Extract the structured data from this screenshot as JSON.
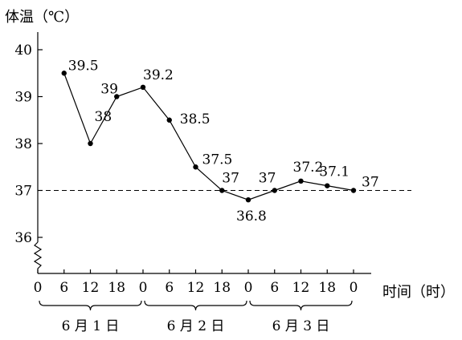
{
  "chart_data": {
    "type": "line",
    "ylabel": "体温（℃）",
    "xlabel": "时间（时）",
    "x_ticks": [
      "0",
      "6",
      "12",
      "18",
      "0",
      "6",
      "12",
      "18",
      "0",
      "6",
      "12",
      "18",
      "0"
    ],
    "y_ticks": [
      "36",
      "37",
      "38",
      "39",
      "40"
    ],
    "ylim": [
      36,
      40
    ],
    "y_axis_break": true,
    "day_groups": [
      {
        "label": "6 月 1 日",
        "from": 0,
        "to": 24
      },
      {
        "label": "6 月 2 日",
        "from": 24,
        "to": 48
      },
      {
        "label": "6 月 3 日",
        "from": 48,
        "to": 72
      }
    ],
    "reference_line": {
      "y": 37,
      "style": "dashed"
    },
    "series": [
      {
        "points": [
          {
            "x": 6,
            "y": 39.5,
            "label": "39.5"
          },
          {
            "x": 12,
            "y": 38,
            "label": "38"
          },
          {
            "x": 18,
            "y": 39,
            "label": "39"
          },
          {
            "x": 24,
            "y": 39.2,
            "label": "39.2"
          },
          {
            "x": 30,
            "y": 38.5,
            "label": "38.5"
          },
          {
            "x": 36,
            "y": 37.5,
            "label": "37.5"
          },
          {
            "x": 42,
            "y": 37,
            "label": "37"
          },
          {
            "x": 48,
            "y": 36.8,
            "label": "36.8"
          },
          {
            "x": 54,
            "y": 37,
            "label": "37"
          },
          {
            "x": 60,
            "y": 37.2,
            "label": "37.2"
          },
          {
            "x": 66,
            "y": 37.1,
            "label": "37.1"
          },
          {
            "x": 72,
            "y": 37,
            "label": "37"
          }
        ]
      }
    ]
  }
}
